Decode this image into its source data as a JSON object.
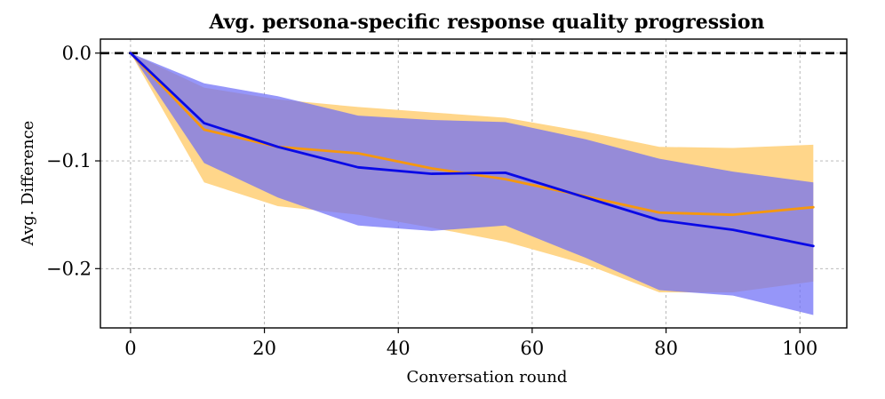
{
  "chart_data": {
    "type": "line",
    "title": "Avg. persona-specific response quality progression",
    "xlabel": "Conversation round",
    "ylabel": "Avg. Difference",
    "xlim": [
      -4.5,
      107
    ],
    "ylim": [
      -0.255,
      0.013
    ],
    "xticks": [
      0,
      20,
      40,
      60,
      80,
      100
    ],
    "xtick_labels": [
      "0",
      "20",
      "40",
      "60",
      "80",
      "100"
    ],
    "yticks": [
      0.0,
      -0.1,
      -0.2
    ],
    "ytick_labels": [
      "0.0",
      "−0.1",
      "−0.2"
    ],
    "grid": true,
    "reference_line": {
      "y": 0.0,
      "style": "dashed",
      "color": "#000000"
    },
    "series": [
      {
        "name": "orange",
        "color": "#f5970f",
        "band_color": "#ffd68a",
        "x": [
          0,
          11,
          22,
          34,
          45,
          56,
          68,
          79,
          90,
          102
        ],
        "values": [
          0.0,
          -0.071,
          -0.087,
          -0.093,
          -0.107,
          -0.117,
          -0.133,
          -0.148,
          -0.15,
          -0.143
        ],
        "upper": [
          0.0,
          -0.032,
          -0.043,
          -0.05,
          -0.055,
          -0.06,
          -0.073,
          -0.087,
          -0.088,
          -0.085
        ],
        "lower": [
          0.0,
          -0.12,
          -0.142,
          -0.15,
          -0.162,
          -0.175,
          -0.196,
          -0.222,
          -0.222,
          -0.212
        ]
      },
      {
        "name": "blue",
        "color": "#0a0ae6",
        "band_color": "#6e6ef7",
        "x": [
          0,
          11,
          22,
          34,
          45,
          56,
          68,
          79,
          90,
          102
        ],
        "values": [
          0.0,
          -0.065,
          -0.087,
          -0.106,
          -0.112,
          -0.111,
          -0.134,
          -0.155,
          -0.164,
          -0.179
        ],
        "upper": [
          0.0,
          -0.028,
          -0.04,
          -0.058,
          -0.062,
          -0.064,
          -0.08,
          -0.098,
          -0.11,
          -0.12
        ],
        "lower": [
          0.0,
          -0.102,
          -0.134,
          -0.16,
          -0.165,
          -0.16,
          -0.19,
          -0.22,
          -0.225,
          -0.243
        ]
      }
    ]
  }
}
